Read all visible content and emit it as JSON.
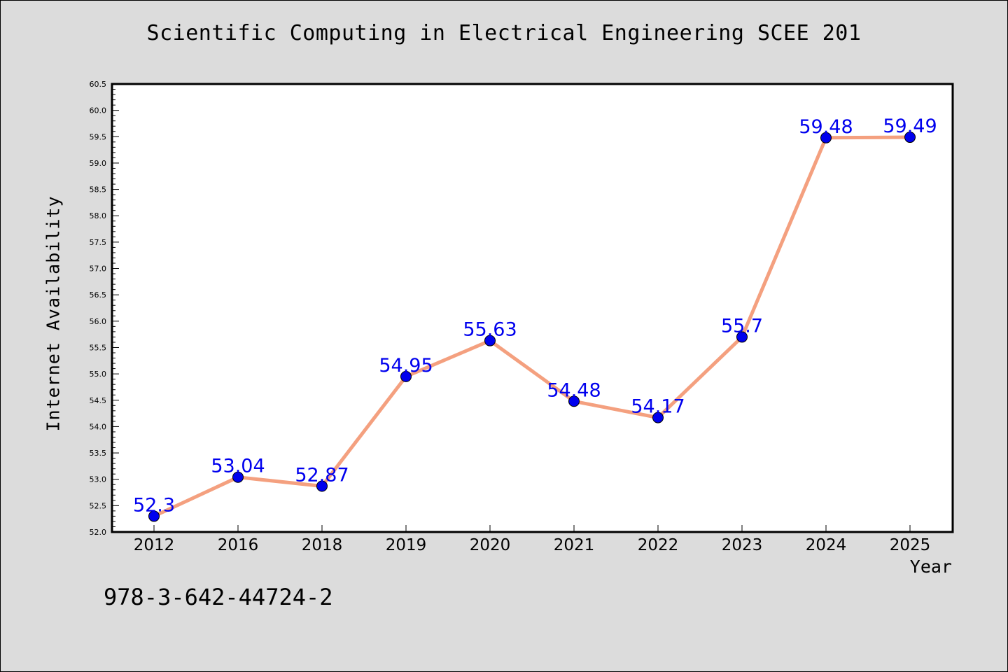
{
  "chart_data": {
    "type": "line",
    "title": "Scientific Computing in Electrical Engineering SCEE 201",
    "xlabel": "Year",
    "ylabel": "Internet Availability",
    "categories": [
      "2012",
      "2016",
      "2018",
      "2019",
      "2020",
      "2021",
      "2022",
      "2023",
      "2024",
      "2025"
    ],
    "series": [
      {
        "values": [
          52.3,
          53.04,
          52.87,
          54.95,
          55.63,
          54.48,
          54.17,
          55.7,
          59.48,
          59.49
        ],
        "labels": [
          "52.3",
          "53.04",
          "52.87",
          "54.95",
          "55.63",
          "54.48",
          "54.17",
          "55.7",
          "59.48",
          "59.49"
        ]
      }
    ],
    "ylim": [
      52.0,
      60.5
    ],
    "yticks": [
      "52.0",
      "52.5",
      "53.0",
      "53.5",
      "54.0",
      "54.5",
      "55.0",
      "55.5",
      "56.0",
      "56.5",
      "57.0",
      "57.5",
      "58.0",
      "58.5",
      "59.0",
      "59.5",
      "60.0",
      "60.5"
    ],
    "grid": false,
    "legend": "none",
    "colors": {
      "line": "#f4a07f",
      "marker": "#0000ee",
      "label": "#0000ee",
      "plot_bg": "#ffffff",
      "page_bg": "#dcdcdc"
    }
  },
  "footer": {
    "code": "978-3-642-44724-2"
  }
}
